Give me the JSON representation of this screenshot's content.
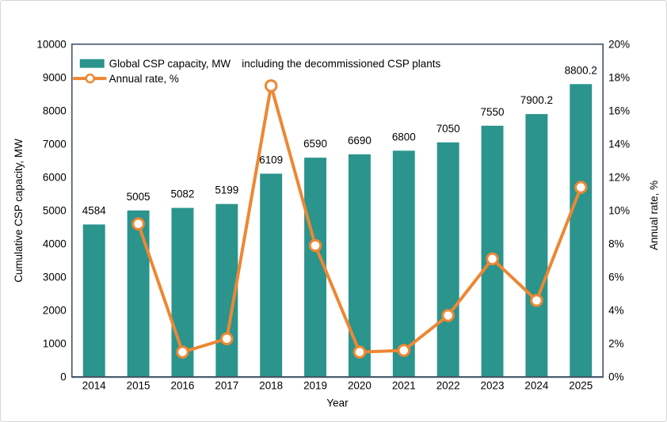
{
  "window": {
    "background": "#ffffff",
    "border_color": "#d6d6d6"
  },
  "chart_data": {
    "type": "combo-bar-line",
    "annotation": "including the decommissioned CSP plants",
    "xlabel": "Year",
    "categories": [
      "2014",
      "2015",
      "2016",
      "2017",
      "2018",
      "2019",
      "2020",
      "2021",
      "2022",
      "2023",
      "2024",
      "2025"
    ],
    "bar_series": {
      "name": "Global CSP capacity, MW",
      "color": "#2a948d",
      "axis": "left",
      "values": [
        4584,
        5005,
        5082,
        5199,
        6109,
        6590,
        6690,
        6800,
        7050,
        7550,
        7900.2,
        8800.2
      ],
      "labels": [
        "4584",
        "5005",
        "5082",
        "5199",
        "6109",
        "6590",
        "6690",
        "6800",
        "7050",
        "7550",
        "7900.2",
        "8800.2"
      ]
    },
    "line_series": {
      "name": "Annual rate, %",
      "color": "#ed8733",
      "marker": "circle",
      "marker_fill": "#ffffff",
      "axis": "right",
      "values": [
        null,
        9.2,
        1.5,
        2.3,
        17.5,
        7.9,
        1.5,
        1.6,
        3.7,
        7.1,
        4.6,
        11.4
      ]
    },
    "left_axis": {
      "title": "Cumulative CSP capacity, MW",
      "min": 0,
      "max": 10000,
      "step": 1000,
      "tick_labels": [
        "0",
        "1000",
        "2000",
        "3000",
        "4000",
        "5000",
        "6000",
        "7000",
        "8000",
        "9000",
        "10000"
      ]
    },
    "right_axis": {
      "title": "Annual rate, %",
      "min": 0,
      "max": 20,
      "step": 2,
      "tick_labels": [
        "0%",
        "2%",
        "4%",
        "6%",
        "8%",
        "10%",
        "12%",
        "14%",
        "16%",
        "18%",
        "20%"
      ]
    },
    "legend": {
      "position": "top-left-inside"
    },
    "grid": false,
    "plot_border_color": "#44546a",
    "text_color": "#000000"
  }
}
